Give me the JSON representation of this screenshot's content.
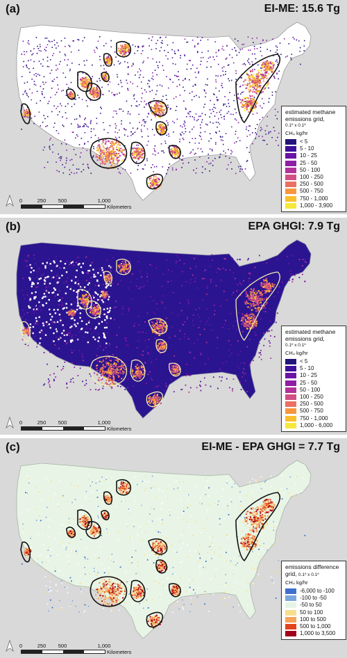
{
  "panels": [
    {
      "label": "(a)",
      "title": "EI-ME: 15.6 Tg",
      "legend": {
        "title_line1": "estimated methane",
        "title_line2": "emissions grid,",
        "resolution": "0.1º x 0.1º",
        "unit": "CH₄ kg/hr",
        "classes": [
          {
            "label": "< 5",
            "color": "#23147a"
          },
          {
            "label": "5 - 10",
            "color": "#3d0f9c"
          },
          {
            "label": "10 - 25",
            "color": "#6a14a6"
          },
          {
            "label": "25 - 50",
            "color": "#8f1ea5"
          },
          {
            "label": "50 - 100",
            "color": "#b3339a"
          },
          {
            "label": "100 - 250",
            "color": "#d24f85"
          },
          {
            "label": "250 - 500",
            "color": "#ea7062"
          },
          {
            "label": "500 - 750",
            "color": "#f7963f"
          },
          {
            "label": "750 - 1,000",
            "color": "#fbbf2a"
          },
          {
            "label": "1,000 - 3,900",
            "color": "#f6e83a"
          }
        ]
      }
    },
    {
      "label": "(b)",
      "title": "EPA GHGI: 7.9 Tg",
      "legend": {
        "title_line1": "estimated methane",
        "title_line2": "emissions grid,",
        "resolution": "0.1º x 0.1º",
        "unit": "CH₄ kg/hr",
        "classes": [
          {
            "label": "< 5",
            "color": "#23147a"
          },
          {
            "label": "5 - 10",
            "color": "#3d0f9c"
          },
          {
            "label": "10 - 25",
            "color": "#6a14a6"
          },
          {
            "label": "25 - 50",
            "color": "#8f1ea5"
          },
          {
            "label": "50 - 100",
            "color": "#b3339a"
          },
          {
            "label": "100 - 250",
            "color": "#d24f85"
          },
          {
            "label": "250 - 500",
            "color": "#ea7062"
          },
          {
            "label": "500 - 750",
            "color": "#f7963f"
          },
          {
            "label": "750 - 1,000",
            "color": "#fbbf2a"
          },
          {
            "label": "1,000 - 6,000",
            "color": "#f6e83a"
          }
        ]
      }
    },
    {
      "label": "(c)",
      "title": "EI-ME - EPA GHGI = 7.7 Tg",
      "legend": {
        "title_line1": "emissions difference",
        "title_line2": "grid,",
        "resolution": "0.1º x 0.1º",
        "unit": "CH₄ kg/hr",
        "classes": [
          {
            "label": "-6,000 to -100",
            "color": "#3f6fce"
          },
          {
            "label": "-100 to -50",
            "color": "#7aa6de"
          },
          {
            "label": "-50 to 50",
            "color": "#e6f4e6"
          },
          {
            "label": "50 to 100",
            "color": "#f7dd8e"
          },
          {
            "label": "100 to 500",
            "color": "#f6a45a"
          },
          {
            "label": "500 to 1,000",
            "color": "#e3441c"
          },
          {
            "label": "1,000 to 3,500",
            "color": "#a3001a"
          }
        ]
      }
    }
  ],
  "scalebar": {
    "ticks": [
      "0",
      "250",
      "500",
      "1,000"
    ],
    "unit": "Kilometers"
  },
  "north_label": "N"
}
